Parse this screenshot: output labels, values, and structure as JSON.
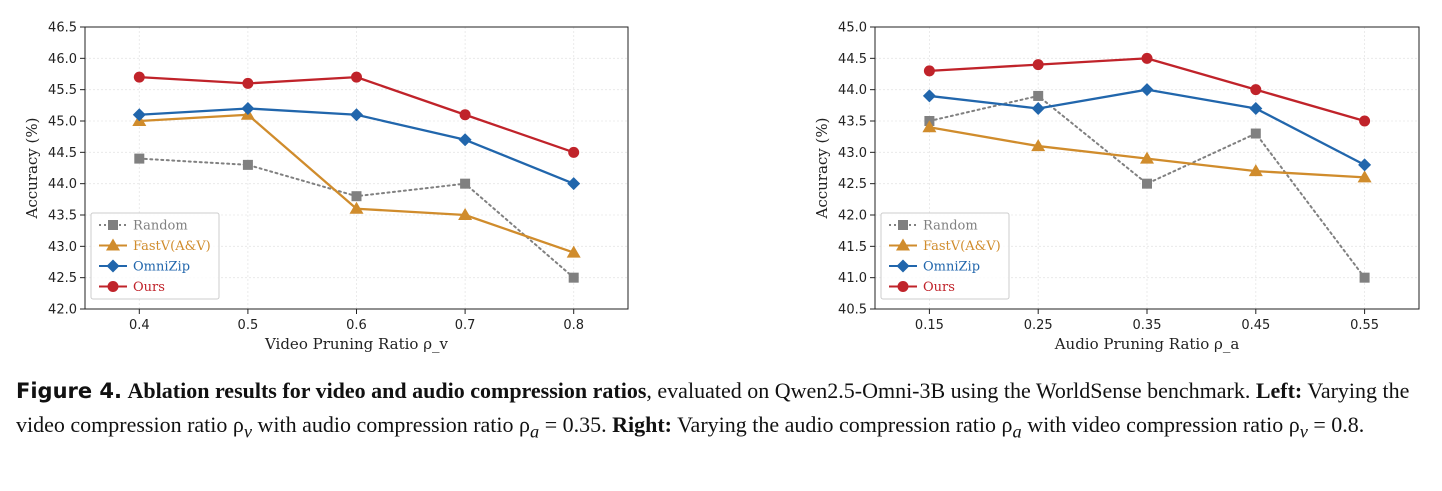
{
  "chart_data": [
    {
      "type": "line",
      "xlabel": "Video Pruning Ratio ρ_v",
      "ylabel": "Accuracy (%)",
      "x": [
        "0.4",
        "0.5",
        "0.6",
        "0.7",
        "0.8"
      ],
      "ylim": [
        42.0,
        46.5
      ],
      "yticks": [
        "42.0",
        "42.5",
        "43.0",
        "43.5",
        "44.0",
        "44.5",
        "45.0",
        "45.5",
        "46.0",
        "46.5"
      ],
      "grid": true,
      "legend_position": "bottom-left",
      "series": [
        {
          "name": "Random",
          "values": [
            44.4,
            44.3,
            43.8,
            44.0,
            42.5
          ],
          "color": "#808080",
          "marker": "square",
          "style": "dotted"
        },
        {
          "name": "FastV(A&V)",
          "values": [
            45.0,
            45.1,
            43.6,
            43.5,
            42.9
          ],
          "color": "#d08c2c",
          "marker": "triangle",
          "style": "solid"
        },
        {
          "name": "OmniZip",
          "values": [
            45.1,
            45.2,
            45.1,
            44.7,
            44.0
          ],
          "color": "#2166ac",
          "marker": "diamond",
          "style": "solid"
        },
        {
          "name": "Ours",
          "values": [
            45.7,
            45.6,
            45.7,
            45.1,
            44.5
          ],
          "color": "#c0232a",
          "marker": "circle",
          "style": "solid"
        }
      ]
    },
    {
      "type": "line",
      "xlabel": "Audio Pruning Ratio ρ_a",
      "ylabel": "Accuracy (%)",
      "x": [
        "0.15",
        "0.25",
        "0.35",
        "0.45",
        "0.55"
      ],
      "ylim": [
        40.5,
        45.0
      ],
      "yticks": [
        "40.5",
        "41.0",
        "41.5",
        "42.0",
        "42.5",
        "43.0",
        "43.5",
        "44.0",
        "44.5",
        "45.0"
      ],
      "grid": true,
      "legend_position": "bottom-left",
      "series": [
        {
          "name": "Random",
          "values": [
            43.5,
            43.9,
            42.5,
            43.3,
            41.0
          ],
          "color": "#808080",
          "marker": "square",
          "style": "dotted"
        },
        {
          "name": "FastV(A&V)",
          "values": [
            43.4,
            43.1,
            42.9,
            42.7,
            42.6
          ],
          "color": "#d08c2c",
          "marker": "triangle",
          "style": "solid"
        },
        {
          "name": "OmniZip",
          "values": [
            43.9,
            43.7,
            44.0,
            43.7,
            42.8
          ],
          "color": "#2166ac",
          "marker": "diamond",
          "style": "solid"
        },
        {
          "name": "Ours",
          "values": [
            44.3,
            44.4,
            44.5,
            44.0,
            43.5
          ],
          "color": "#c0232a",
          "marker": "circle",
          "style": "solid"
        }
      ]
    }
  ],
  "caption": {
    "label": "Figure 4.",
    "title": "Ablation results for video and audio compression ratios",
    "text1": ", evaluated on Qwen2.5-Omni-3B using the WorldSense benchmark. ",
    "left_label": "Left:",
    "text2": " Varying the video compression ratio ρ",
    "sub_v": "v",
    "text3": " with audio compression ratio ρ",
    "sub_a": "a",
    "text4": " = 0.35. ",
    "right_label": "Right:",
    "text5": " Varying the audio compression ratio ρ",
    "sub_a2": "a",
    "text6": " with video compression ratio ρ",
    "sub_v2": "v",
    "text7": " = 0.8."
  }
}
